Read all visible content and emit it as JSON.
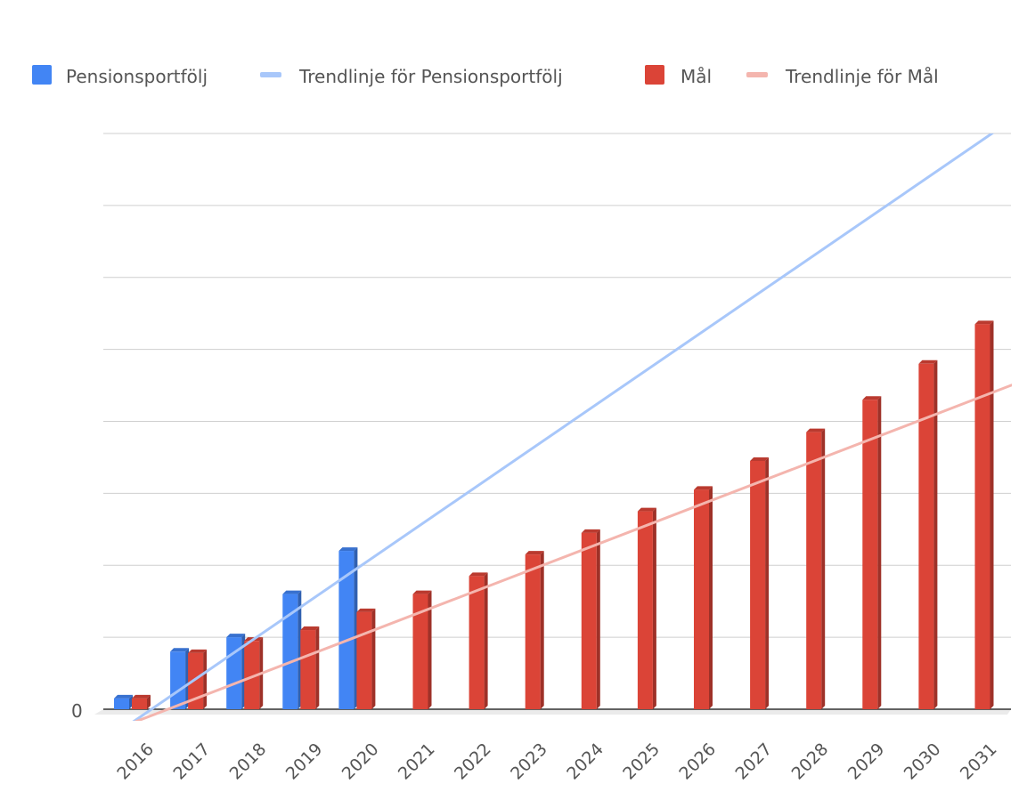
{
  "chart_data": {
    "type": "bar",
    "title": "",
    "xlabel": "",
    "ylabel": "",
    "y_tick_labels": [
      "0"
    ],
    "ylim": [
      0,
      8
    ],
    "grid": true,
    "legend_position": "top-left",
    "categories": [
      "2016",
      "2017",
      "2018",
      "2019",
      "2020",
      "2021",
      "2022",
      "2023",
      "2024",
      "2025",
      "2026",
      "2027",
      "2028",
      "2029",
      "2030",
      "2031"
    ],
    "series": [
      {
        "name": "Pensionsportfölj",
        "kind": "bar",
        "color": "#4285f4",
        "values": [
          0.15,
          0.8,
          1.0,
          1.6,
          2.2,
          null,
          null,
          null,
          null,
          null,
          null,
          null,
          null,
          null,
          null,
          null
        ]
      },
      {
        "name": "Mål",
        "kind": "bar",
        "color": "#db4437",
        "values": [
          0.15,
          0.78,
          0.95,
          1.1,
          1.35,
          1.6,
          1.85,
          2.15,
          2.45,
          2.75,
          3.05,
          3.45,
          3.85,
          4.3,
          4.8,
          5.35
        ]
      }
    ],
    "trendlines": [
      {
        "name": "Trendlinje för Pensionsportfölj",
        "color": "#a8c7fa",
        "intercept_value": -0.2,
        "slope_per_category": 0.535
      },
      {
        "name": "Trendlinje för Mål",
        "color": "#f4b5ae",
        "intercept_value": -0.2,
        "slope_per_category": 0.3
      }
    ]
  }
}
